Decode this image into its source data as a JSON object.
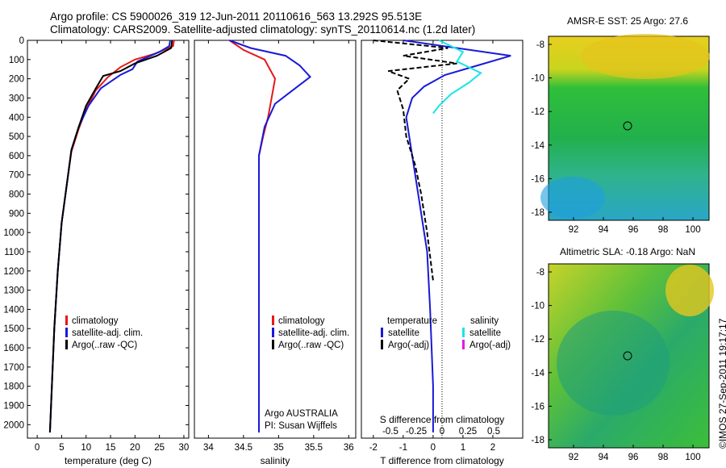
{
  "header": {
    "line1": "Argo profile: CS 5900026_319 12-Jun-2011 20110616_563 13.292S 95.513E",
    "line2": "Climatology: CARS2009. Satellite-adjusted climatology: synTS_20110614.nc (1.2d later)"
  },
  "colors": {
    "climatology": "#e51919",
    "satellite": "#1919d9",
    "argo": "#000000",
    "satellite_salinity": "#19e5e5",
    "argo_adj_salinity": "#e519e5"
  },
  "credit": "©IMOS 27-Sep-2011 19:17:17",
  "panels": {
    "temperature": {
      "xlabel": "temperature (deg C)",
      "legend": [
        "climatology",
        "satellite-adj. clim.",
        "Argo(..raw -QC)"
      ]
    },
    "salinity": {
      "xlabel": "salinity",
      "legend": [
        "climatology",
        "satellite-adj. clim.",
        "Argo(..raw -QC)"
      ],
      "note1": "Argo AUSTRALIA",
      "note2": "PI: Susan Wijffels"
    },
    "difference": {
      "top_xlabel": "S difference from climatology",
      "xlabel": "T difference from climatology",
      "legend_temp_title": "temperature",
      "legend_sal_title": "salinity",
      "legend_temp": [
        "satellite",
        "Argo(-adj)"
      ],
      "legend_sal": [
        "satellite",
        "Argo(-adj)"
      ]
    },
    "sst_map": {
      "title": "AMSR-E SST: 25 Argo: 27.6"
    },
    "sla_map": {
      "title": "Altimetric SLA: -0.18 Argo: NaN"
    }
  },
  "chart_data": [
    {
      "type": "line",
      "title": "Argo profile: CS 5900026_319 12-Jun-2011 20110616_563 13.292S 95.513E",
      "xlabel": "temperature (deg C)",
      "ylabel": "",
      "xlim": [
        -2,
        31
      ],
      "ylim": [
        2070,
        0
      ],
      "xticks": [
        0,
        5,
        10,
        15,
        20,
        25,
        30
      ],
      "yticks": [
        0,
        100,
        200,
        300,
        400,
        500,
        600,
        700,
        800,
        900,
        1000,
        1100,
        1200,
        1300,
        1400,
        1500,
        1600,
        1700,
        1800,
        1900,
        2000
      ],
      "series": [
        {
          "name": "climatology",
          "x": [
            28.0,
            27.8,
            24,
            20,
            17,
            14.5,
            12,
            10,
            8.5,
            7,
            6,
            5,
            4.2,
            3.5,
            3,
            2.6
          ],
          "y": [
            0,
            30,
            70,
            100,
            140,
            190,
            260,
            360,
            460,
            580,
            760,
            950,
            1200,
            1500,
            1800,
            2040
          ]
        },
        {
          "name": "satellite-adj. clim.",
          "x": [
            27.2,
            27.0,
            25,
            20.5,
            19.5,
            17,
            13,
            10.5,
            8.5,
            7,
            6,
            5,
            4.2,
            3.5,
            3,
            2.6
          ],
          "y": [
            0,
            30,
            60,
            110,
            150,
            180,
            250,
            340,
            450,
            570,
            760,
            950,
            1200,
            1500,
            1800,
            2040
          ]
        },
        {
          "name": "Argo(..raw -QC)",
          "x": [
            27.6,
            27.4,
            24.5,
            20,
            17,
            13.5,
            12,
            10,
            8.5,
            7,
            6,
            5,
            4.2,
            3.5,
            3,
            2.6
          ],
          "y": [
            0,
            40,
            80,
            120,
            160,
            185,
            250,
            340,
            450,
            570,
            760,
            950,
            1200,
            1500,
            1800,
            2040
          ]
        }
      ]
    },
    {
      "type": "line",
      "xlabel": "salinity",
      "xlim": [
        33.8,
        36.1
      ],
      "ylim": [
        2070,
        0
      ],
      "xticks": [
        34,
        34.5,
        35,
        35.5,
        36
      ],
      "series": [
        {
          "name": "climatology",
          "x": [
            34.3,
            34.5,
            34.8,
            34.95,
            34.9,
            34.85,
            34.78,
            34.72,
            34.72,
            34.72,
            34.72,
            34.72,
            34.72,
            34.72
          ],
          "y": [
            0,
            50,
            100,
            200,
            300,
            400,
            500,
            600,
            800,
            1000,
            1200,
            1500,
            1800,
            2040
          ]
        },
        {
          "name": "satellite-adj. clim.",
          "x": [
            34.3,
            34.6,
            35.1,
            35.3,
            35.45,
            35.2,
            34.95,
            34.8,
            34.72,
            34.72,
            34.72,
            34.72,
            34.72
          ],
          "y": [
            0,
            40,
            80,
            130,
            190,
            260,
            330,
            450,
            600,
            900,
            1200,
            1600,
            2040
          ]
        },
        {
          "name": "Argo(..raw -QC)",
          "x": [],
          "y": []
        }
      ]
    },
    {
      "type": "line",
      "xlabel": "T difference from climatology",
      "top_xlabel": "S difference from climatology",
      "xlim": [
        -2.4,
        3.0
      ],
      "ylim": [
        2070,
        0
      ],
      "xticks": [
        -2,
        -1,
        0,
        1,
        2
      ],
      "top_xticks": [
        "-0.5",
        "-0.25",
        "0",
        "0.25",
        "0.5"
      ],
      "series": [
        {
          "name": "temperature satellite",
          "x": [
            -1.0,
            2.6,
            1.5,
            0.4,
            -0.3,
            -0.7,
            -0.9,
            -0.8,
            -0.6,
            -0.4,
            -0.2,
            -0.1,
            0.0,
            0.0
          ],
          "y": [
            0,
            80,
            130,
            180,
            240,
            300,
            400,
            500,
            700,
            900,
            1100,
            1400,
            1800,
            2040
          ]
        },
        {
          "name": "temperature Argo(-adj)",
          "x": [
            -2.0,
            0.5,
            -1.0,
            0.8,
            -1.5,
            -0.8,
            -1.2,
            -1.0,
            -0.9,
            -0.6,
            -0.4,
            -0.2,
            0.0
          ],
          "y": [
            0,
            40,
            80,
            120,
            160,
            200,
            260,
            360,
            500,
            650,
            800,
            1000,
            1250
          ]
        },
        {
          "name": "salinity satellite",
          "x": [
            0.2,
            1.0,
            0.8,
            1.6,
            1.2,
            0.6,
            0.2,
            0.0
          ],
          "y": [
            0,
            60,
            110,
            170,
            220,
            280,
            340,
            380
          ]
        }
      ]
    }
  ]
}
